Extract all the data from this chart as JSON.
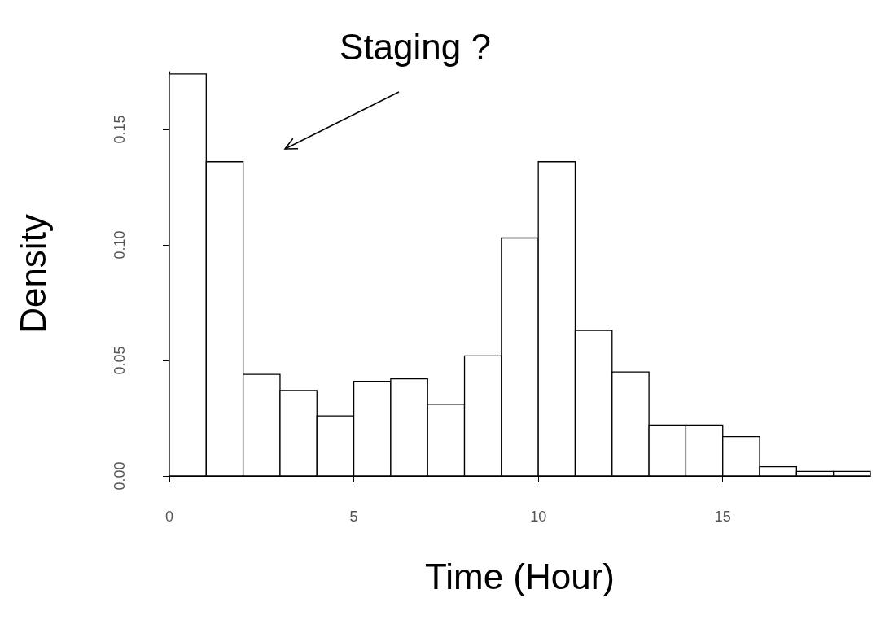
{
  "chart_data": {
    "type": "histogram",
    "xlabel": "Time (Hour)",
    "ylabel": "Density",
    "bins": [
      0,
      1,
      2,
      3,
      4,
      5,
      6,
      7,
      8,
      9,
      10,
      11,
      12,
      13,
      14,
      15,
      16,
      17,
      18,
      19
    ],
    "values": [
      0.174,
      0.136,
      0.044,
      0.037,
      0.026,
      0.041,
      0.042,
      0.031,
      0.052,
      0.103,
      0.136,
      0.063,
      0.045,
      0.022,
      0.022,
      0.017,
      0.004,
      0.002,
      0.002
    ],
    "color": "#ffffff",
    "xlim": [
      0,
      19
    ],
    "xticks": [
      0,
      5,
      10,
      15
    ],
    "ylim": [
      0,
      0.175
    ],
    "yticks": [
      {
        "value": 0,
        "label": "0.00"
      },
      {
        "value": 0.05,
        "label": "0.05"
      },
      {
        "value": 0.1,
        "label": "0.10"
      },
      {
        "value": 0.15,
        "label": "0.15"
      }
    ],
    "grid": false,
    "annotations": [
      "Staging ?"
    ]
  }
}
